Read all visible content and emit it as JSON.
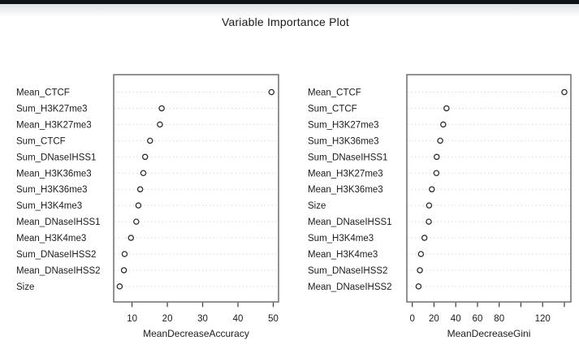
{
  "title": "Variable Importance Plot",
  "colors": {
    "chrome_bar": "#0e1318",
    "plot_border": "#6e6e6e",
    "grid_dotted": "#d9d9d9",
    "dot_stroke": "#2e2e2e",
    "dot_fill": "#ffffff",
    "tick_stroke": "#3c3c3c",
    "text": "#1c1c1c"
  },
  "chart_data": [
    {
      "type": "scatter",
      "variant": "dot-chart",
      "title": "Variable Importance Plot",
      "xlabel": "MeanDecreaseAccuracy",
      "ylabel": "",
      "legend": "none",
      "grid": "dotted-horizontal",
      "categories": [
        "Mean_CTCF",
        "Sum_H3K27me3",
        "Mean_H3K27me3",
        "Sum_CTCF",
        "Sum_DNaseIHSS1",
        "Mean_H3K36me3",
        "Sum_H3K36me3",
        "Sum_H3K4me3",
        "Mean_DNaseIHSS1",
        "Mean_H3K4me3",
        "Sum_DNaseIHSS2",
        "Mean_DNaseIHSS2",
        "Size"
      ],
      "values": [
        49.5,
        18.4,
        17.9,
        15.1,
        13.7,
        13.2,
        12.3,
        11.8,
        11.2,
        9.7,
        7.9,
        7.7,
        6.5
      ],
      "xticks": [
        10,
        20,
        30,
        40,
        50
      ],
      "xtick_labels": [
        "10",
        "20",
        "30",
        "40",
        "50"
      ],
      "xlim": [
        4.8,
        51.5
      ]
    },
    {
      "type": "scatter",
      "variant": "dot-chart",
      "title": "Variable Importance Plot",
      "xlabel": "MeanDecreaseGini",
      "ylabel": "",
      "legend": "none",
      "grid": "dotted-horizontal",
      "categories": [
        "Mean_CTCF",
        "Sum_CTCF",
        "Sum_H3K27me3",
        "Sum_H3K36me3",
        "Sum_DNaseIHSS1",
        "Mean_H3K27me3",
        "Mean_H3K36me3",
        "Size",
        "Mean_DNaseIHSS1",
        "Sum_H3K4me3",
        "Mean_H3K4me3",
        "Sum_DNaseIHSS2",
        "Mean_DNaseIHSS2"
      ],
      "values": [
        140,
        31.5,
        28.5,
        25.7,
        22.5,
        22.2,
        18,
        15.5,
        15.2,
        11.2,
        8,
        7,
        5.8
      ],
      "xticks": [
        0,
        20,
        40,
        60,
        80,
        100,
        120,
        140
      ],
      "xtick_labels": [
        "0",
        "20",
        "40",
        "60",
        "80",
        "",
        "120",
        ""
      ],
      "xlim": [
        -5,
        146
      ]
    }
  ]
}
